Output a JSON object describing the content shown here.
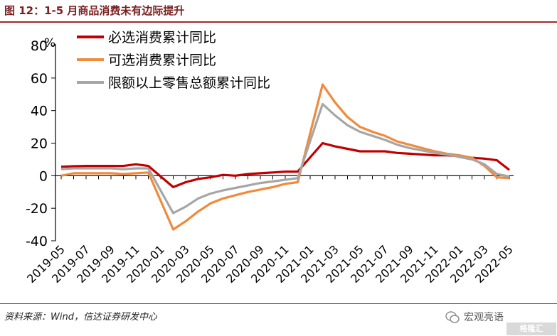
{
  "header": {
    "title": "图 12：1-5 月商品消费未有边际提升"
  },
  "footer": {
    "source": "资料来源：Wind，信达证券研发中心",
    "watermark": "宏观亮语",
    "logo_text": "格隆汇"
  },
  "chart_data": {
    "type": "line",
    "unit": "%",
    "ylim": [
      -40,
      80
    ],
    "yticks": [
      -40,
      -20,
      0,
      20,
      40,
      60,
      80
    ],
    "ytick_labels": [
      "-40",
      "-20",
      "0",
      "20",
      "40",
      "60",
      "80"
    ],
    "grid": false,
    "legend_position": "top",
    "categories": [
      "2019-05",
      "2019-06",
      "2019-07",
      "2019-08",
      "2019-09",
      "2019-10",
      "2019-11",
      "2019-12",
      "2020-01",
      "2020-02",
      "2020-03",
      "2020-04",
      "2020-05",
      "2020-06",
      "2020-07",
      "2020-08",
      "2020-09",
      "2020-10",
      "2020-11",
      "2020-12",
      "2021-01",
      "2021-02",
      "2021-03",
      "2021-04",
      "2021-05",
      "2021-06",
      "2021-07",
      "2021-08",
      "2021-09",
      "2021-10",
      "2021-11",
      "2021-12",
      "2022-01",
      "2022-02",
      "2022-03",
      "2022-04",
      "2022-05"
    ],
    "xtick_labels": [
      "2019-05",
      "2019-07",
      "2019-09",
      "2019-11",
      "2020-01",
      "2020-03",
      "2020-05",
      "2020-07",
      "2020-09",
      "2020-11",
      "2021-01",
      "2021-03",
      "2021-05",
      "2021-07",
      "2021-09",
      "2021-11",
      "2022-01",
      "2022-03",
      "2022-05"
    ],
    "series": [
      {
        "name": "必选消费累计同比",
        "color": "#c00000",
        "values": [
          5.5,
          5.8,
          6,
          6,
          6,
          6,
          7,
          6,
          null,
          -7,
          -4,
          -2,
          -1,
          0.5,
          0,
          1,
          1.5,
          2,
          2.5,
          2.5,
          null,
          20,
          18,
          16.5,
          15,
          15,
          15,
          14,
          13.5,
          13,
          12.5,
          12.5,
          12,
          11,
          10.5,
          9.5,
          3.5
        ]
      },
      {
        "name": "可选消费累计同比",
        "color": "#f08a3c",
        "values": [
          0,
          1.5,
          1.5,
          1.5,
          1.5,
          1,
          1.5,
          2,
          null,
          -33,
          -28,
          -22,
          -17,
          -14,
          -12,
          -10,
          -8.5,
          -7,
          -5,
          -4,
          null,
          56,
          45,
          36,
          30,
          27,
          24.5,
          21,
          19,
          17,
          15,
          13.5,
          12.5,
          11,
          6,
          -1,
          -1.5
        ]
      },
      {
        "name": "限额以上零售总额累计同比",
        "color": "#a6a6a6",
        "values": [
          4,
          4.5,
          4.5,
          4.5,
          4.5,
          4,
          4.5,
          4.5,
          null,
          -23,
          -19,
          -14,
          -11,
          -9,
          -7.5,
          -6,
          -4.5,
          -3.5,
          -2.5,
          -1.5,
          null,
          44,
          37,
          31,
          27,
          24.5,
          22,
          19,
          17,
          15.5,
          14,
          13,
          11.5,
          10,
          7,
          1,
          -0.5
        ]
      }
    ]
  }
}
